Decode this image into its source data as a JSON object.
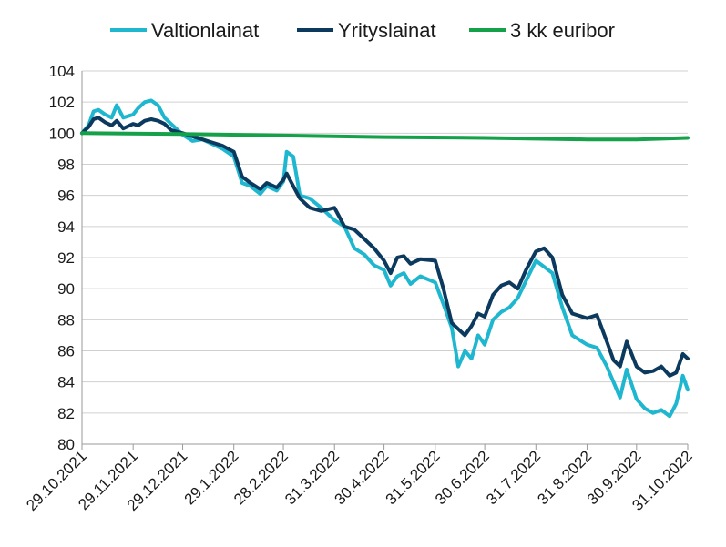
{
  "chart_data": {
    "type": "line",
    "title": "",
    "xlabel": "",
    "ylabel": "",
    "ylim": [
      80,
      104
    ],
    "yticks": [
      80,
      82,
      84,
      86,
      88,
      90,
      92,
      94,
      96,
      98,
      100,
      102,
      104
    ],
    "grid": "horizontal",
    "legend_position": "top",
    "x_tick_labels": [
      "29.10.2021",
      "29.11.2021",
      "29.12.2021",
      "29.1.2022",
      "28.2.2022",
      "31.3.2022",
      "30.4.2022",
      "31.5.2022",
      "30.6.2022",
      "31.7.2022",
      "31.8.2022",
      "30.9.2022",
      "31.10.2022"
    ],
    "x_tick_dates": [
      "2021-10-29",
      "2021-11-29",
      "2021-12-29",
      "2022-01-29",
      "2022-02-28",
      "2022-03-31",
      "2022-04-30",
      "2022-05-31",
      "2022-06-30",
      "2022-07-31",
      "2022-08-31",
      "2022-09-30",
      "2022-10-31"
    ],
    "series": [
      {
        "name": "Valtionlainat",
        "color": "#1fb7cf",
        "x": [
          "2021-10-29",
          "2021-11-02",
          "2021-11-05",
          "2021-11-08",
          "2021-11-12",
          "2021-11-16",
          "2021-11-19",
          "2021-11-23",
          "2021-11-29",
          "2021-12-02",
          "2021-12-06",
          "2021-12-10",
          "2021-12-14",
          "2021-12-18",
          "2021-12-22",
          "2021-12-29",
          "2022-01-04",
          "2022-01-10",
          "2022-01-16",
          "2022-01-22",
          "2022-01-29",
          "2022-02-03",
          "2022-02-08",
          "2022-02-14",
          "2022-02-18",
          "2022-02-24",
          "2022-02-28",
          "2022-03-02",
          "2022-03-06",
          "2022-03-10",
          "2022-03-16",
          "2022-03-23",
          "2022-03-31",
          "2022-04-06",
          "2022-04-12",
          "2022-04-18",
          "2022-04-24",
          "2022-04-30",
          "2022-05-04",
          "2022-05-08",
          "2022-05-12",
          "2022-05-16",
          "2022-05-22",
          "2022-05-31",
          "2022-06-05",
          "2022-06-10",
          "2022-06-14",
          "2022-06-18",
          "2022-06-22",
          "2022-06-26",
          "2022-06-30",
          "2022-07-05",
          "2022-07-10",
          "2022-07-15",
          "2022-07-20",
          "2022-07-25",
          "2022-07-31",
          "2022-08-05",
          "2022-08-10",
          "2022-08-16",
          "2022-08-22",
          "2022-08-31",
          "2022-09-06",
          "2022-09-12",
          "2022-09-16",
          "2022-09-20",
          "2022-09-24",
          "2022-09-30",
          "2022-10-05",
          "2022-10-10",
          "2022-10-15",
          "2022-10-20",
          "2022-10-24",
          "2022-10-28",
          "2022-10-31"
        ],
        "values": [
          100.0,
          100.5,
          101.4,
          101.5,
          101.2,
          101.0,
          101.8,
          101.0,
          101.2,
          101.6,
          102.0,
          102.1,
          101.8,
          101.0,
          100.6,
          99.9,
          99.5,
          99.6,
          99.3,
          99.0,
          98.5,
          96.8,
          96.6,
          96.1,
          96.6,
          96.3,
          96.9,
          98.8,
          98.5,
          96.0,
          95.8,
          95.2,
          94.4,
          94.0,
          92.6,
          92.2,
          91.5,
          91.2,
          90.2,
          90.8,
          91.0,
          90.3,
          90.8,
          90.4,
          89.0,
          87.5,
          85.0,
          86.0,
          85.5,
          87.0,
          86.4,
          88.0,
          88.5,
          88.8,
          89.4,
          90.5,
          91.8,
          91.4,
          91.0,
          88.8,
          87.0,
          86.4,
          86.2,
          85.0,
          84.0,
          83.0,
          84.8,
          82.9,
          82.3,
          82.0,
          82.2,
          81.8,
          82.6,
          84.4,
          83.5
        ]
      },
      {
        "name": "Yrityslainat",
        "color": "#0c3a5e",
        "x": [
          "2021-10-29",
          "2021-11-02",
          "2021-11-05",
          "2021-11-08",
          "2021-11-12",
          "2021-11-16",
          "2021-11-19",
          "2021-11-23",
          "2021-11-29",
          "2021-12-02",
          "2021-12-06",
          "2021-12-10",
          "2021-12-14",
          "2021-12-18",
          "2021-12-22",
          "2021-12-29",
          "2022-01-04",
          "2022-01-10",
          "2022-01-16",
          "2022-01-22",
          "2022-01-29",
          "2022-02-03",
          "2022-02-08",
          "2022-02-14",
          "2022-02-18",
          "2022-02-24",
          "2022-02-28",
          "2022-03-02",
          "2022-03-06",
          "2022-03-10",
          "2022-03-16",
          "2022-03-23",
          "2022-03-31",
          "2022-04-06",
          "2022-04-12",
          "2022-04-18",
          "2022-04-24",
          "2022-04-30",
          "2022-05-04",
          "2022-05-08",
          "2022-05-12",
          "2022-05-16",
          "2022-05-22",
          "2022-05-31",
          "2022-06-05",
          "2022-06-10",
          "2022-06-14",
          "2022-06-18",
          "2022-06-22",
          "2022-06-26",
          "2022-06-30",
          "2022-07-05",
          "2022-07-10",
          "2022-07-15",
          "2022-07-20",
          "2022-07-25",
          "2022-07-31",
          "2022-08-05",
          "2022-08-10",
          "2022-08-16",
          "2022-08-22",
          "2022-08-31",
          "2022-09-06",
          "2022-09-12",
          "2022-09-16",
          "2022-09-20",
          "2022-09-24",
          "2022-09-30",
          "2022-10-05",
          "2022-10-10",
          "2022-10-15",
          "2022-10-20",
          "2022-10-24",
          "2022-10-28",
          "2022-10-31"
        ],
        "values": [
          100.0,
          100.4,
          100.9,
          101.0,
          100.7,
          100.5,
          100.8,
          100.3,
          100.6,
          100.5,
          100.8,
          100.9,
          100.8,
          100.6,
          100.2,
          100.0,
          99.8,
          99.6,
          99.4,
          99.2,
          98.8,
          97.2,
          96.8,
          96.4,
          96.8,
          96.5,
          97.0,
          97.4,
          96.6,
          95.8,
          95.2,
          95.0,
          95.2,
          94.0,
          93.8,
          93.2,
          92.6,
          91.8,
          91.0,
          92.0,
          92.1,
          91.6,
          91.9,
          91.8,
          90.0,
          87.8,
          87.4,
          87.0,
          87.6,
          88.4,
          88.2,
          89.6,
          90.2,
          90.4,
          90.0,
          91.2,
          92.4,
          92.6,
          92.0,
          89.6,
          88.4,
          88.1,
          88.3,
          86.6,
          85.4,
          85.0,
          86.6,
          85.0,
          84.6,
          84.7,
          85.0,
          84.4,
          84.6,
          85.8,
          85.5
        ]
      },
      {
        "name": "3 kk euribor",
        "color": "#14a14a",
        "x": [
          "2021-10-29",
          "2021-12-29",
          "2022-02-28",
          "2022-04-30",
          "2022-06-30",
          "2022-08-31",
          "2022-09-30",
          "2022-10-31"
        ],
        "values": [
          100.0,
          99.95,
          99.85,
          99.75,
          99.7,
          99.6,
          99.6,
          99.7
        ]
      }
    ]
  }
}
